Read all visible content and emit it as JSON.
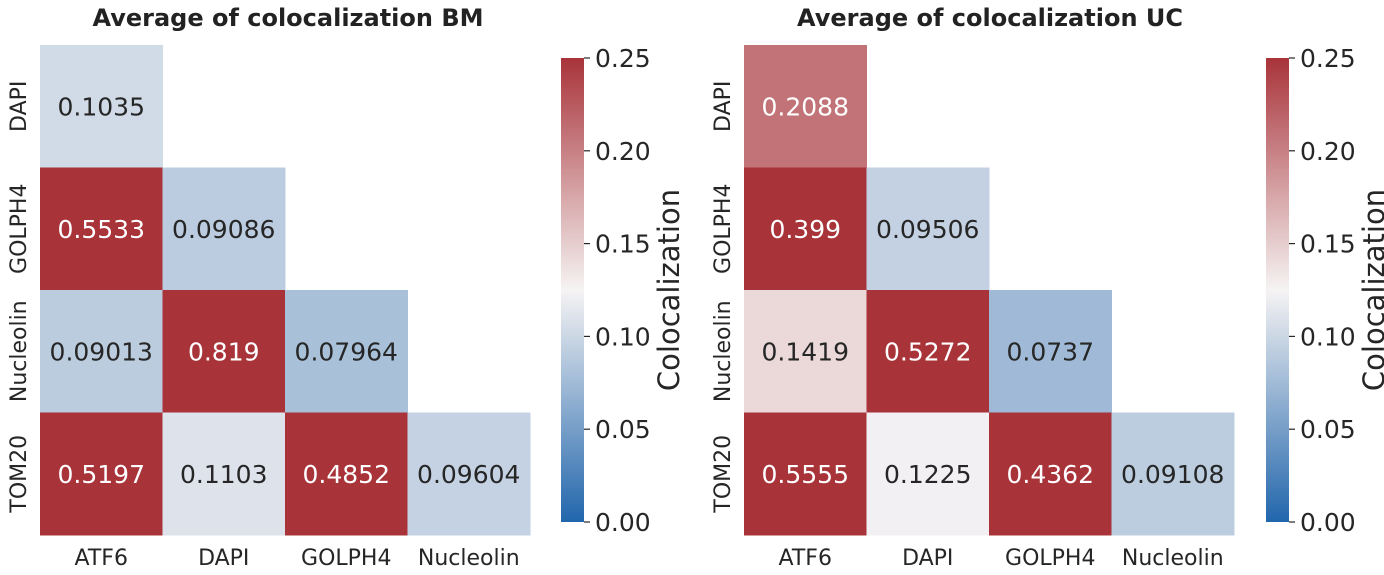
{
  "colors": {
    "low": "#2166ac",
    "mid": "#f6f3f3",
    "high": "#a8343a",
    "text_dark": "#262626",
    "text_light": "#ffffff"
  },
  "chart_data": [
    {
      "type": "heatmap",
      "title": "Average of colocalization BM",
      "x_categories": [
        "ATF6",
        "DAPI",
        "GOLPH4",
        "Nucleolin"
      ],
      "y_categories": [
        "DAPI",
        "GOLPH4",
        "Nucleolin",
        "TOM20"
      ],
      "values": [
        [
          0.1035,
          null,
          null,
          null
        ],
        [
          0.5533,
          0.09086,
          null,
          null
        ],
        [
          0.09013,
          0.819,
          0.07964,
          null
        ],
        [
          0.5197,
          0.1103,
          0.4852,
          0.09604
        ]
      ],
      "labels": [
        [
          "0.1035",
          "",
          "",
          ""
        ],
        [
          "0.5533",
          "0.09086",
          "",
          ""
        ],
        [
          "0.09013",
          "0.819",
          "0.07964",
          ""
        ],
        [
          "0.5197",
          "0.1103",
          "0.4852",
          "0.09604"
        ]
      ],
      "colorbar": {
        "label": "Colocalization",
        "vmin": 0.0,
        "vmax": 0.25,
        "ticks": [
          "0.00",
          "0.05",
          "0.10",
          "0.15",
          "0.20",
          "0.25"
        ]
      },
      "colormap": "vlag"
    },
    {
      "type": "heatmap",
      "title": "Average of colocalization UC",
      "x_categories": [
        "ATF6",
        "DAPI",
        "GOLPH4",
        "Nucleolin"
      ],
      "y_categories": [
        "DAPI",
        "GOLPH4",
        "Nucleolin",
        "TOM20"
      ],
      "values": [
        [
          0.2088,
          null,
          null,
          null
        ],
        [
          0.399,
          0.09506,
          null,
          null
        ],
        [
          0.1419,
          0.5272,
          0.0737,
          null
        ],
        [
          0.5555,
          0.1225,
          0.4362,
          0.09108
        ]
      ],
      "labels": [
        [
          "0.2088",
          "",
          "",
          ""
        ],
        [
          "0.399",
          "0.09506",
          "",
          ""
        ],
        [
          "0.1419",
          "0.5272",
          "0.0737",
          ""
        ],
        [
          "0.5555",
          "0.1225",
          "0.4362",
          "0.09108"
        ]
      ],
      "colorbar": {
        "label": "Colocalization",
        "vmin": 0.0,
        "vmax": 0.25,
        "ticks": [
          "0.00",
          "0.05",
          "0.10",
          "0.15",
          "0.20",
          "0.25"
        ]
      },
      "colormap": "vlag"
    }
  ]
}
